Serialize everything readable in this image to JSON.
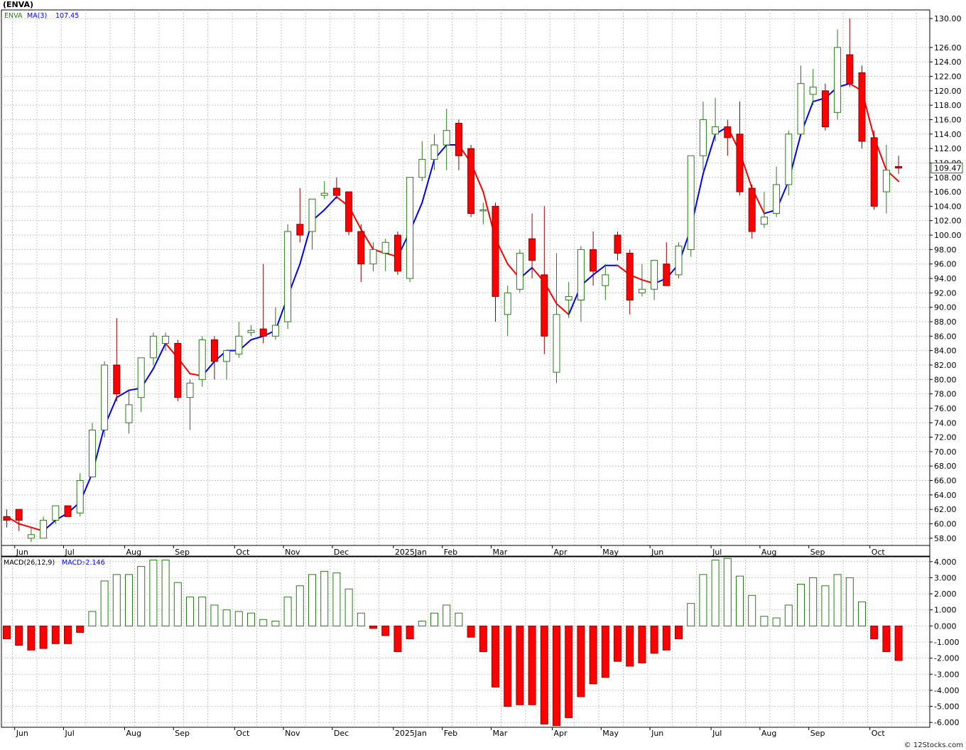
{
  "header": {
    "title": "(ENVA)"
  },
  "footer": {
    "credit": "© 12Stocks.com"
  },
  "colors": {
    "up": "#2a7a1a",
    "down": "#ff0000",
    "ma_up": "#0000ff",
    "ma_down": "#ff0000",
    "grid": "#c8c8c8",
    "badge": "#2a7a1a"
  },
  "chart_data": [
    {
      "type": "candlestick",
      "legend": {
        "symbol": "ENVA",
        "indicator": "MA(3)",
        "value": "107.45",
        "placement": "top-left"
      },
      "last_price_label": "109.47",
      "ylim": [
        57,
        131.2
      ],
      "y_ticks": [
        "58.00",
        "60.00",
        "62.00",
        "64.00",
        "66.00",
        "68.00",
        "70.00",
        "72.00",
        "74.00",
        "76.00",
        "78.00",
        "80.00",
        "82.00",
        "84.00",
        "86.00",
        "88.00",
        "90.00",
        "92.00",
        "94.00",
        "96.00",
        "98.00",
        "100.00",
        "102.00",
        "104.00",
        "106.00",
        "108.00",
        "110.00",
        "112.00",
        "114.00",
        "116.00",
        "118.00",
        "120.00",
        "122.00",
        "124.00",
        "126.00",
        "130.00"
      ],
      "x_labels": [
        {
          "label": "Jun",
          "week": 1
        },
        {
          "label": "Jul",
          "week": 5
        },
        {
          "label": "Aug",
          "week": 10
        },
        {
          "label": "Sep",
          "week": 14
        },
        {
          "label": "Oct",
          "week": 19
        },
        {
          "label": "Nov",
          "week": 23
        },
        {
          "label": "Dec",
          "week": 27
        },
        {
          "label": "2025Jan",
          "week": 32
        },
        {
          "label": "Feb",
          "week": 36
        },
        {
          "label": "Mar",
          "week": 40
        },
        {
          "label": "Apr",
          "week": 45
        },
        {
          "label": "May",
          "week": 49
        },
        {
          "label": "Jun",
          "week": 53
        },
        {
          "label": "Jul",
          "week": 58
        },
        {
          "label": "Aug",
          "week": 62
        },
        {
          "label": "Sep",
          "week": 66
        },
        {
          "label": "Oct",
          "week": 71
        }
      ],
      "candles": [
        [
          0,
          61.0,
          62.0,
          59.5,
          60.5
        ],
        [
          1,
          62.0,
          62.0,
          59.0,
          60.5
        ],
        [
          2,
          58.0,
          59.5,
          57.5,
          58.5
        ],
        [
          3,
          58.0,
          61.0,
          58.0,
          60.5
        ],
        [
          4,
          60.5,
          62.5,
          60.0,
          62.5
        ],
        [
          5,
          62.5,
          62.5,
          61.0,
          61.0
        ],
        [
          6,
          61.5,
          67.0,
          61.0,
          66.0
        ],
        [
          7,
          66.5,
          74.0,
          66.5,
          73.0
        ],
        [
          8,
          73.0,
          82.5,
          72.0,
          82.0
        ],
        [
          9,
          82.0,
          88.5,
          77.0,
          78.0
        ],
        [
          10,
          74.0,
          78.5,
          72.5,
          76.5
        ],
        [
          11,
          77.5,
          83.0,
          75.5,
          83.0
        ],
        [
          12,
          83.0,
          86.5,
          82.0,
          86.0
        ],
        [
          13,
          85.0,
          86.5,
          84.0,
          86.0
        ],
        [
          14,
          85.0,
          85.5,
          77.0,
          77.5
        ],
        [
          15,
          77.5,
          80.0,
          73.0,
          79.5
        ],
        [
          16,
          80.0,
          86.0,
          79.0,
          85.5
        ],
        [
          17,
          85.5,
          86.0,
          80.0,
          82.5
        ],
        [
          18,
          82.5,
          84.0,
          80.0,
          84.0
        ],
        [
          19,
          83.5,
          88.0,
          83.0,
          86.0
        ],
        [
          20,
          86.5,
          87.5,
          86.0,
          86.8
        ],
        [
          21,
          87.0,
          96.0,
          85.0,
          86.0
        ],
        [
          22,
          86.0,
          90.0,
          85.5,
          87.5
        ],
        [
          23,
          88.0,
          101.5,
          87.0,
          100.5
        ],
        [
          24,
          101.5,
          106.5,
          99.0,
          100.0
        ],
        [
          25,
          100.5,
          105.0,
          98.0,
          105.0
        ],
        [
          26,
          105.5,
          107.5,
          105.0,
          105.8
        ],
        [
          27,
          106.5,
          108.0,
          105.0,
          105.5
        ],
        [
          28,
          106.0,
          106.0,
          100.0,
          100.5
        ],
        [
          29,
          100.5,
          101.5,
          93.5,
          96.0
        ],
        [
          30,
          96.0,
          99.0,
          95.0,
          98.0
        ],
        [
          31,
          97.5,
          99.5,
          95.0,
          99.0
        ],
        [
          32,
          100.0,
          100.5,
          94.5,
          95.0
        ],
        [
          33,
          94.0,
          108.0,
          93.5,
          108.0
        ],
        [
          34,
          108.0,
          113.0,
          107.5,
          110.5
        ],
        [
          35,
          110.5,
          114.0,
          109.0,
          112.5
        ],
        [
          36,
          112.5,
          117.5,
          109.0,
          114.5
        ],
        [
          37,
          115.5,
          116.0,
          109.0,
          111.0
        ],
        [
          38,
          112.0,
          112.5,
          102.5,
          103.0
        ],
        [
          39,
          103.5,
          104.5,
          101.5,
          103.5
        ],
        [
          40,
          104.0,
          104.5,
          88.0,
          91.5
        ],
        [
          41,
          89.0,
          93.0,
          86.0,
          92.0
        ],
        [
          42,
          92.5,
          98.0,
          92.0,
          97.5
        ],
        [
          43,
          99.5,
          103.0,
          94.0,
          96.5
        ],
        [
          44,
          94.5,
          104.0,
          83.5,
          86.0
        ],
        [
          45,
          81.0,
          97.5,
          79.5,
          89.0
        ],
        [
          46,
          91.0,
          93.5,
          88.5,
          91.5
        ],
        [
          47,
          91.0,
          98.5,
          88.0,
          98.0
        ],
        [
          48,
          98.0,
          100.5,
          93.0,
          95.0
        ],
        [
          49,
          93.0,
          96.0,
          91.0,
          94.5
        ],
        [
          50,
          100.0,
          100.5,
          96.5,
          97.5
        ],
        [
          51,
          97.5,
          98.0,
          89.0,
          91.0
        ],
        [
          52,
          92.0,
          96.0,
          91.5,
          92.5
        ],
        [
          53,
          92.5,
          96.5,
          91.0,
          96.5
        ],
        [
          54,
          96.0,
          99.0,
          93.0,
          93.0
        ],
        [
          55,
          94.5,
          99.0,
          94.0,
          98.5
        ],
        [
          56,
          98.0,
          111.0,
          97.0,
          111.0
        ],
        [
          57,
          111.0,
          118.5,
          109.0,
          116.0
        ],
        [
          58,
          114.0,
          119.0,
          113.0,
          115.0
        ],
        [
          59,
          115.0,
          116.0,
          111.0,
          113.5
        ],
        [
          60,
          114.0,
          118.5,
          105.5,
          106.0
        ],
        [
          61,
          106.5,
          107.0,
          99.5,
          100.5
        ],
        [
          62,
          101.5,
          106.0,
          101.0,
          102.5
        ],
        [
          63,
          103.0,
          109.5,
          102.5,
          107.0
        ],
        [
          64,
          107.0,
          114.5,
          105.5,
          114.0
        ],
        [
          65,
          114.0,
          123.5,
          114.0,
          121.0
        ],
        [
          66,
          119.5,
          123.0,
          118.0,
          120.5
        ],
        [
          67,
          120.0,
          121.0,
          114.5,
          115.0
        ],
        [
          68,
          117.0,
          128.5,
          116.0,
          126.0
        ],
        [
          69,
          125.0,
          130.0,
          120.5,
          121.0
        ],
        [
          70,
          122.5,
          123.5,
          112.0,
          113.0
        ],
        [
          71,
          113.5,
          114.5,
          103.5,
          104.0
        ],
        [
          72,
          106.0,
          112.5,
          103.0,
          109.0
        ],
        [
          73,
          109.5,
          111.0,
          108.5,
          109.3
        ]
      ],
      "ma": [
        [
          0,
          61.0
        ],
        [
          1,
          60.0
        ],
        [
          2,
          59.5
        ],
        [
          3,
          59.0
        ],
        [
          4,
          60.5
        ],
        [
          5,
          61.5
        ],
        [
          6,
          63.0
        ],
        [
          7,
          67.0
        ],
        [
          8,
          73.5
        ],
        [
          9,
          77.5
        ],
        [
          10,
          78.5
        ],
        [
          11,
          78.8
        ],
        [
          12,
          81.5
        ],
        [
          13,
          85.0
        ],
        [
          14,
          83.0
        ],
        [
          15,
          80.8
        ],
        [
          16,
          80.5
        ],
        [
          17,
          82.5
        ],
        [
          18,
          84.0
        ],
        [
          19,
          84.0
        ],
        [
          20,
          85.5
        ],
        [
          21,
          86.0
        ],
        [
          22,
          86.8
        ],
        [
          23,
          91.5
        ],
        [
          24,
          96.0
        ],
        [
          25,
          102.0
        ],
        [
          26,
          103.5
        ],
        [
          27,
          105.3
        ],
        [
          28,
          104.0
        ],
        [
          29,
          100.8
        ],
        [
          30,
          98.0
        ],
        [
          31,
          97.5
        ],
        [
          32,
          97.0
        ],
        [
          33,
          100.5
        ],
        [
          34,
          104.5
        ],
        [
          35,
          110.5
        ],
        [
          36,
          112.5
        ],
        [
          37,
          112.5
        ],
        [
          38,
          110.0
        ],
        [
          39,
          106.0
        ],
        [
          40,
          99.5
        ],
        [
          41,
          96.0
        ],
        [
          42,
          94.0
        ],
        [
          43,
          95.5
        ],
        [
          44,
          93.5
        ],
        [
          45,
          90.5
        ],
        [
          46,
          89.0
        ],
        [
          47,
          93.0
        ],
        [
          48,
          94.5
        ],
        [
          49,
          95.8
        ],
        [
          50,
          95.8
        ],
        [
          51,
          94.5
        ],
        [
          52,
          93.8
        ],
        [
          53,
          93.3
        ],
        [
          54,
          94.0
        ],
        [
          55,
          96.0
        ],
        [
          56,
          101.0
        ],
        [
          57,
          108.5
        ],
        [
          58,
          114.0
        ],
        [
          59,
          115.0
        ],
        [
          60,
          111.5
        ],
        [
          61,
          106.5
        ],
        [
          62,
          103.0
        ],
        [
          63,
          103.5
        ],
        [
          64,
          107.5
        ],
        [
          65,
          114.0
        ],
        [
          66,
          118.5
        ],
        [
          67,
          119.0
        ],
        [
          68,
          120.5
        ],
        [
          69,
          121.0
        ],
        [
          70,
          120.0
        ],
        [
          71,
          113.5
        ],
        [
          72,
          109.0
        ],
        [
          73,
          107.45
        ]
      ]
    },
    {
      "type": "bar",
      "legend": {
        "indicator": "MACD(26,12,9)",
        "label": "MACD:",
        "value": "-2.146",
        "placement": "top-left"
      },
      "ylim": [
        -6.3,
        4.3
      ],
      "y_ticks": [
        "4.000",
        "3.000",
        "2.000",
        "1.000",
        "0.000",
        "-1.000",
        "-2.000",
        "-3.000",
        "-4.000",
        "-5.000",
        "-6.000"
      ],
      "values": [
        -0.8,
        -1.2,
        -1.5,
        -1.4,
        -1.1,
        -1.1,
        -0.4,
        0.9,
        2.8,
        3.2,
        3.2,
        3.7,
        4.1,
        4.1,
        2.7,
        1.8,
        1.8,
        1.3,
        1.0,
        0.9,
        0.8,
        0.4,
        0.3,
        1.8,
        2.5,
        3.2,
        3.4,
        3.3,
        2.3,
        0.8,
        -0.15,
        -0.6,
        -1.6,
        -0.8,
        0.3,
        0.8,
        1.3,
        0.8,
        -0.7,
        -1.6,
        -3.8,
        -5.0,
        -4.9,
        -4.9,
        -6.1,
        -6.2,
        -5.7,
        -4.4,
        -3.6,
        -3.2,
        -2.2,
        -2.5,
        -2.3,
        -1.7,
        -1.5,
        -0.8,
        1.4,
        3.2,
        4.1,
        4.2,
        3.1,
        1.9,
        0.6,
        0.5,
        1.3,
        2.6,
        3.0,
        2.5,
        3.2,
        3.0,
        1.5,
        -0.8,
        -1.6,
        -2.146
      ]
    }
  ]
}
